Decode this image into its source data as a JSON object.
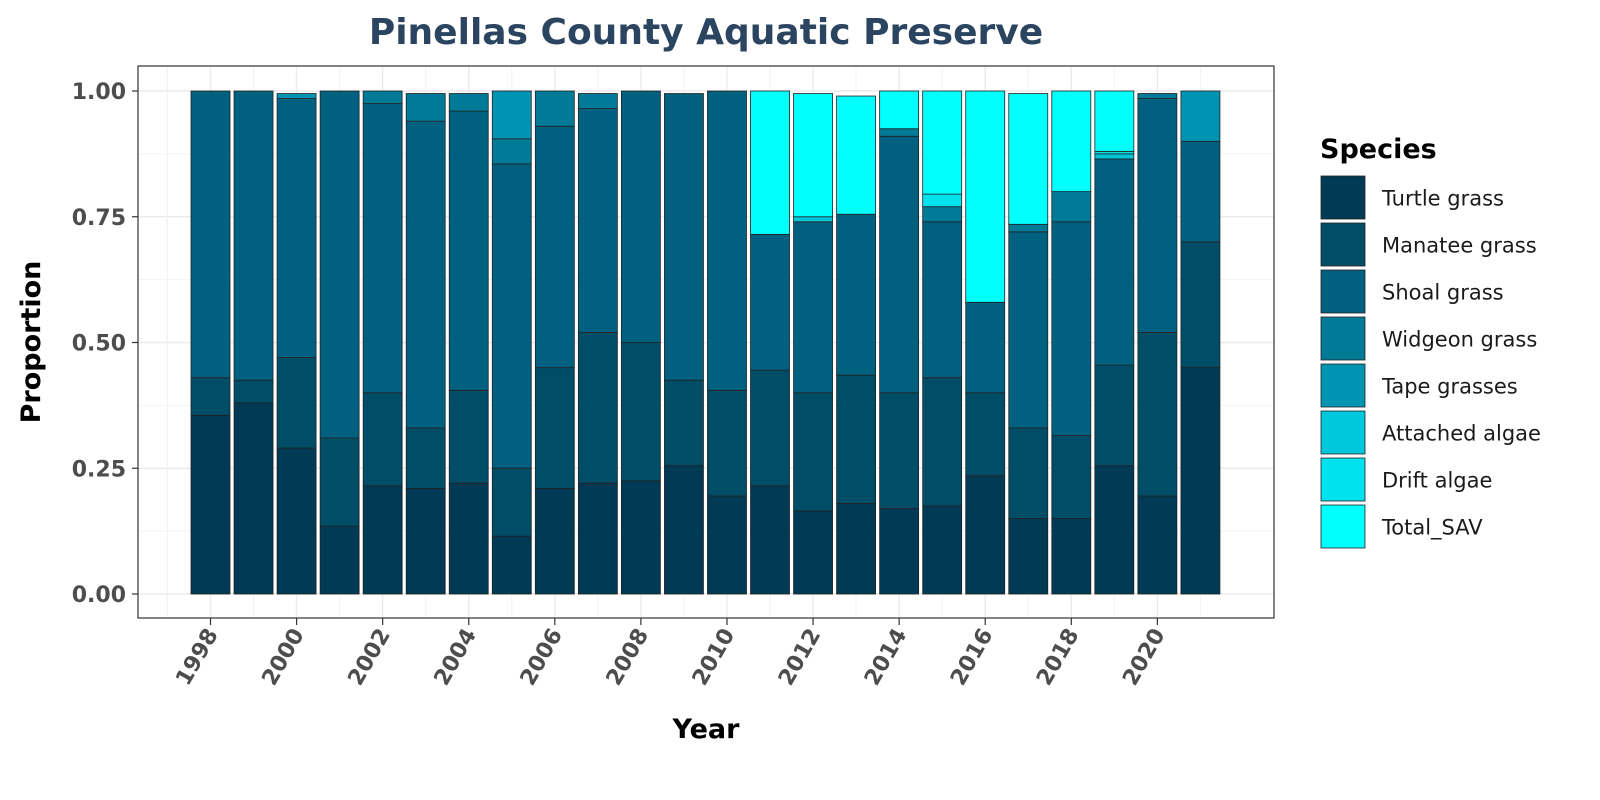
{
  "chart_data": {
    "type": "bar",
    "stacked": true,
    "title": "Pinellas County Aquatic Preserve",
    "xlabel": "Year",
    "ylabel": "Proportion",
    "ylim": [
      0,
      1
    ],
    "yticks": [
      "0.00",
      "0.25",
      "0.50",
      "0.75",
      "1.00"
    ],
    "xticks": [
      "1998",
      "2000",
      "2002",
      "2004",
      "2006",
      "2008",
      "2010",
      "2012",
      "2014",
      "2016",
      "2018",
      "2020"
    ],
    "grid": true,
    "legend_position": "right",
    "legend_title": "Species",
    "categories": [
      "1998",
      "1999",
      "2000",
      "2001",
      "2002",
      "2003",
      "2004",
      "2005",
      "2006",
      "2007",
      "2008",
      "2009",
      "2010",
      "2011",
      "2012",
      "2013",
      "2014",
      "2015",
      "2016",
      "2017",
      "2018",
      "2019",
      "2020",
      "2021"
    ],
    "series": [
      {
        "name": "Turtle grass",
        "color": "#003a54",
        "values": [
          0.355,
          0.38,
          0.29,
          0.135,
          0.215,
          0.21,
          0.22,
          0.115,
          0.21,
          0.22,
          0.225,
          0.255,
          0.195,
          0.215,
          0.165,
          0.18,
          0.17,
          0.175,
          0.235,
          0.15,
          0.15,
          0.255,
          0.195,
          0.45
        ]
      },
      {
        "name": "Manatee grass",
        "color": "#004d68",
        "values": [
          0.075,
          0.045,
          0.18,
          0.175,
          0.185,
          0.12,
          0.185,
          0.135,
          0.24,
          0.3,
          0.275,
          0.17,
          0.21,
          0.23,
          0.235,
          0.255,
          0.23,
          0.255,
          0.165,
          0.18,
          0.165,
          0.2,
          0.325,
          0.25
        ]
      },
      {
        "name": "Shoal grass",
        "color": "#006080",
        "values": [
          0.57,
          0.575,
          0.515,
          0.69,
          0.575,
          0.61,
          0.555,
          0.605,
          0.48,
          0.445,
          0.5,
          0.57,
          0.595,
          0.27,
          0.34,
          0.32,
          0.51,
          0.31,
          0.18,
          0.39,
          0.425,
          0.41,
          0.465,
          0.2
        ]
      },
      {
        "name": "Widgeon grass",
        "color": "#007a97",
        "values": [
          0,
          0,
          0,
          0,
          0.025,
          0.055,
          0.035,
          0.05,
          0.07,
          0.03,
          0,
          0,
          0,
          0,
          0,
          0,
          0.015,
          0.03,
          0,
          0.015,
          0.06,
          0,
          0.01,
          0
        ]
      },
      {
        "name": "Tape grasses",
        "color": "#0093b2",
        "values": [
          0,
          0,
          0.01,
          0,
          0,
          0,
          0,
          0.095,
          0,
          0,
          0,
          0,
          0,
          0,
          0,
          0,
          0,
          0,
          0,
          0,
          0,
          0,
          0,
          0.1
        ]
      },
      {
        "name": "Attached algae",
        "color": "#00c8dc",
        "values": [
          0,
          0,
          0,
          0,
          0,
          0,
          0,
          0,
          0,
          0,
          0,
          0,
          0,
          0,
          0.01,
          0,
          0,
          0,
          0,
          0,
          0,
          0.01,
          0,
          0
        ]
      },
      {
        "name": "Drift algae",
        "color": "#00e2ee",
        "values": [
          0,
          0,
          0,
          0,
          0,
          0,
          0,
          0,
          0,
          0,
          0,
          0,
          0,
          0,
          0,
          0,
          0,
          0.025,
          0,
          0,
          0,
          0.005,
          0,
          0
        ]
      },
      {
        "name": "Total_SAV",
        "color": "#00ffff",
        "values": [
          0,
          0,
          0,
          0,
          0,
          0,
          0,
          0,
          0,
          0,
          0,
          0,
          0,
          0.285,
          0.245,
          0.235,
          0.075,
          0.205,
          0.42,
          0.26,
          0.2,
          0.12,
          0,
          0
        ]
      }
    ]
  }
}
